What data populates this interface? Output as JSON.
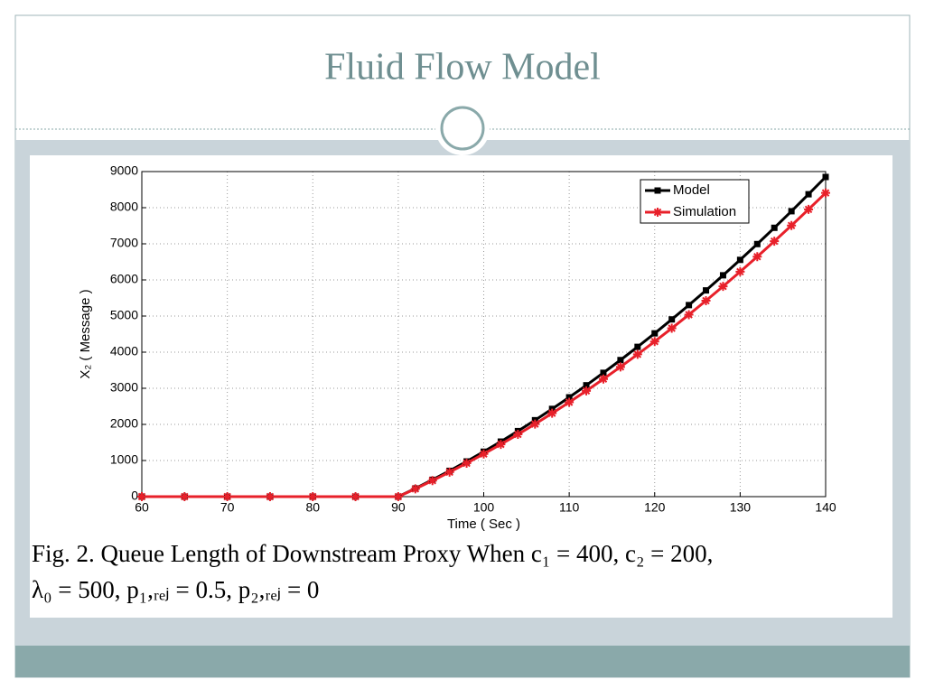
{
  "slide_title": "Fluid Flow Model",
  "caption": [
    "Fig. 2.    Queue Length of Downstream Proxy When c₁ = 400, c₂ = 200,",
    "λ₀ = 500, p₁,ᵣₑⱼ = 0.5, p₂,ᵣₑⱼ = 0"
  ],
  "chart_data": {
    "type": "line",
    "xlabel": "Time ( Sec )",
    "ylabel": "X₂ ( Message )",
    "x": [
      60,
      65,
      70,
      75,
      80,
      85,
      90,
      92,
      94,
      96,
      98,
      100,
      102,
      104,
      106,
      108,
      110,
      112,
      114,
      116,
      118,
      120,
      122,
      124,
      126,
      128,
      130,
      132,
      134,
      136,
      138,
      140
    ],
    "series": [
      {
        "name": "Model",
        "color": "#000000",
        "marker": "square",
        "values": [
          0,
          0,
          0,
          0,
          0,
          0,
          0,
          227,
          466,
          714,
          974,
          1244,
          1524,
          1815,
          2116,
          2429,
          2750,
          3083,
          3428,
          3781,
          4147,
          4521,
          4907,
          5303,
          5710,
          6128,
          6555,
          6993,
          7443,
          7902,
          8372,
          8850
        ]
      },
      {
        "name": "Simulation",
        "color": "#e8202a",
        "marker": "star",
        "values": [
          0,
          0,
          0,
          0,
          0,
          0,
          0,
          216,
          443,
          678,
          925,
          1182,
          1448,
          1724,
          2010,
          2308,
          2613,
          2929,
          3257,
          3592,
          3940,
          4295,
          4662,
          5038,
          5425,
          5822,
          6227,
          6643,
          7071,
          7507,
          7953,
          8408
        ]
      }
    ],
    "xlim": [
      60,
      140
    ],
    "xticks": [
      60,
      70,
      80,
      90,
      100,
      110,
      120,
      130,
      140
    ],
    "ylim": [
      0,
      9000
    ],
    "yticks": [
      0,
      1000,
      2000,
      3000,
      4000,
      5000,
      6000,
      7000,
      8000,
      9000
    ],
    "grid": true,
    "legend": "upper right"
  }
}
